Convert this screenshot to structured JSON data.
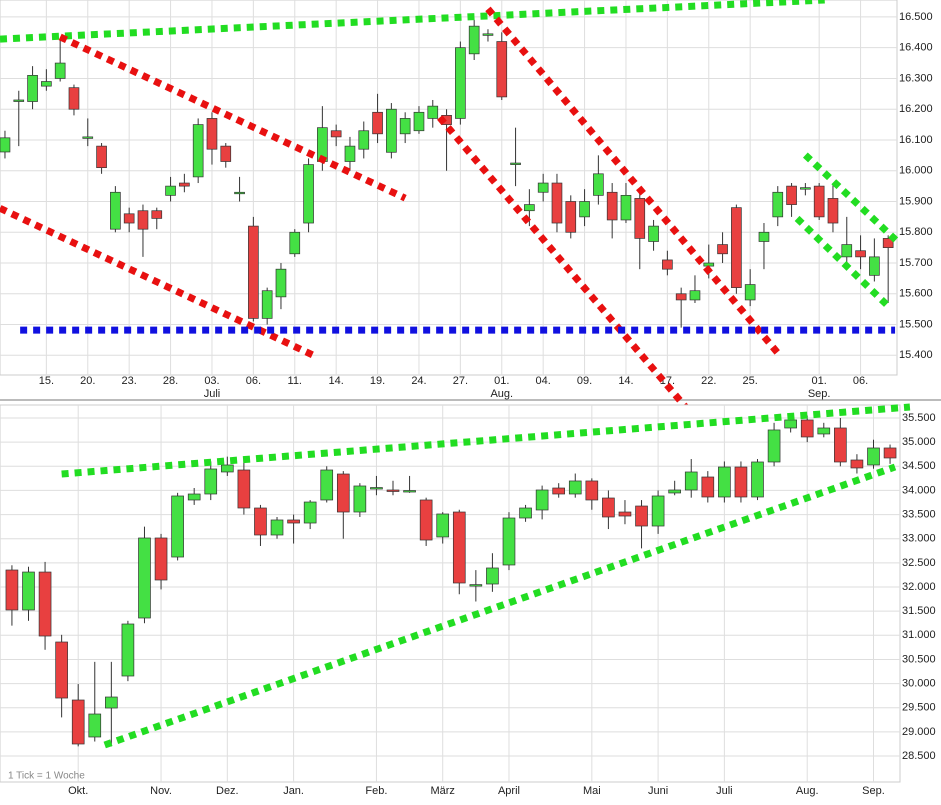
{
  "chart_data": [
    {
      "type": "candlestick",
      "up_color": "#44e044",
      "down_color": "#e84040",
      "xlim": [
        -0.36,
        64.64
      ],
      "ylim": [
        15336,
        16555
      ],
      "yticks": [
        {
          "value": 15400,
          "label": "15.400"
        },
        {
          "value": 15500,
          "label": "15.500"
        },
        {
          "value": 15600,
          "label": "15.600"
        },
        {
          "value": 15700,
          "label": "15.700"
        },
        {
          "value": 15800,
          "label": "15.800"
        },
        {
          "value": 15900,
          "label": "15.900"
        },
        {
          "value": 16000,
          "label": "16.000"
        },
        {
          "value": 16100,
          "label": "16.100"
        },
        {
          "value": 16200,
          "label": "16.200"
        },
        {
          "value": 16300,
          "label": "16.300"
        },
        {
          "value": 16400,
          "label": "16.400"
        },
        {
          "value": 16500,
          "label": "16.500"
        }
      ],
      "xticks": [
        {
          "value": 3,
          "label": "15."
        },
        {
          "value": 6,
          "label": "20."
        },
        {
          "value": 9,
          "label": "23."
        },
        {
          "value": 12,
          "label": "28."
        },
        {
          "value": 15,
          "label": "03."
        },
        {
          "value": 18,
          "label": "06."
        },
        {
          "value": 21,
          "label": "11."
        },
        {
          "value": 24,
          "label": "14."
        },
        {
          "value": 27,
          "label": "19."
        },
        {
          "value": 30,
          "label": "24."
        },
        {
          "value": 33,
          "label": "27."
        },
        {
          "value": 36,
          "label": "01."
        },
        {
          "value": 39,
          "label": "04."
        },
        {
          "value": 42,
          "label": "09."
        },
        {
          "value": 45,
          "label": "14."
        },
        {
          "value": 48,
          "label": "17."
        },
        {
          "value": 51,
          "label": "22."
        },
        {
          "value": 54,
          "label": "25."
        },
        {
          "value": 59,
          "label": "01."
        },
        {
          "value": 62,
          "label": "06."
        }
      ],
      "xticks_secondary": [
        {
          "value": 15,
          "label": "Juli"
        },
        {
          "value": 36,
          "label": "Aug."
        },
        {
          "value": 59,
          "label": "Sep."
        }
      ],
      "open": [
        16061,
        16225,
        16225,
        16275,
        16300,
        16270,
        16110,
        16080,
        15810,
        15860,
        15870,
        15870,
        15920,
        15960,
        15980,
        16170,
        16080,
        15930,
        15820,
        15520,
        15590,
        15730,
        15830,
        16030,
        16130,
        16030,
        16070,
        16190,
        16060,
        16120,
        16130,
        16170,
        16180,
        16170,
        16380,
        16440,
        16420,
        16020,
        15870,
        15930,
        15960,
        15900,
        15850,
        15920,
        15930,
        15840,
        15910,
        15770,
        15710,
        15600,
        15580,
        15690,
        15760,
        15880,
        15580,
        15770,
        15850,
        15950,
        15940,
        15950,
        15910,
        15720,
        15740,
        15660,
        15780
      ],
      "high": [
        16130,
        16260,
        16340,
        16330,
        16430,
        16280,
        16170,
        16090,
        15950,
        15880,
        15890,
        15880,
        15980,
        15990,
        16170,
        16190,
        16090,
        15980,
        15850,
        15620,
        15700,
        15810,
        16040,
        16210,
        16150,
        16110,
        16160,
        16250,
        16220,
        16190,
        16210,
        16230,
        16200,
        16420,
        16490,
        16460,
        16450,
        16140,
        15940,
        15990,
        15990,
        15920,
        15940,
        16050,
        15960,
        15960,
        15930,
        15840,
        15740,
        15620,
        15660,
        15760,
        15800,
        15890,
        15680,
        15830,
        15950,
        15960,
        15960,
        15960,
        15960,
        15850,
        15790,
        15780,
        15790
      ],
      "low": [
        16040,
        16080,
        16200,
        16260,
        16290,
        16180,
        16080,
        15990,
        15800,
        15800,
        15720,
        15810,
        15900,
        15930,
        15960,
        16020,
        16010,
        15900,
        15510,
        15500,
        15550,
        15720,
        15800,
        16000,
        16080,
        16000,
        16040,
        16090,
        16040,
        16090,
        16120,
        16140,
        16000,
        16150,
        16360,
        16420,
        16230,
        15950,
        15820,
        15900,
        15800,
        15780,
        15820,
        15890,
        15780,
        15830,
        15680,
        15740,
        15660,
        15490,
        15570,
        15650,
        15700,
        15600,
        15560,
        15680,
        15820,
        15850,
        15920,
        15840,
        15800,
        15700,
        15680,
        15640,
        15570
      ],
      "close": [
        16107,
        16230,
        16310,
        16290,
        16350,
        16200,
        16110,
        16010,
        15930,
        15830,
        15810,
        15845,
        15950,
        15950,
        16150,
        16070,
        16030,
        15930,
        15520,
        15610,
        15680,
        15800,
        16020,
        16140,
        16110,
        16080,
        16130,
        16120,
        16200,
        16170,
        16190,
        16210,
        16150,
        16400,
        16470,
        16445,
        16240,
        16025,
        15890,
        15960,
        15830,
        15800,
        15900,
        15990,
        15840,
        15920,
        15780,
        15820,
        15680,
        15580,
        15610,
        15700,
        15730,
        15620,
        15630,
        15800,
        15930,
        15890,
        15945,
        15850,
        15830,
        15760,
        15720,
        15720,
        15750
      ],
      "trendlines": [
        {
          "color": "#22dd22",
          "points": [
            [
              -0.36,
              16428
            ],
            [
              59.4,
              16555
            ]
          ]
        },
        {
          "color": "#e81010",
          "points": [
            [
              4.0,
              16435
            ],
            [
              29.0,
              15911
            ]
          ]
        },
        {
          "color": "#e81010",
          "points": [
            [
              -0.36,
              15878
            ],
            [
              22.5,
              15397
            ]
          ]
        },
        {
          "color": "#e81010",
          "points": [
            [
              31.5,
              16173
            ],
            [
              49.3,
              15233
            ]
          ]
        },
        {
          "color": "#e81010",
          "points": [
            [
              35.0,
              16526
            ],
            [
              56.2,
              15397
            ]
          ]
        },
        {
          "color": "#1010e0",
          "points": [
            [
              1.1,
              15482
            ],
            [
              64.5,
              15482
            ]
          ]
        },
        {
          "color": "#22dd22",
          "points": [
            [
              58.0,
              16051
            ],
            [
              64.6,
              15773
            ]
          ]
        },
        {
          "color": "#22dd22",
          "points": [
            [
              57.4,
              15845
            ],
            [
              64.0,
              15560
            ]
          ]
        }
      ]
    },
    {
      "type": "candlestick",
      "up_color": "#44e044",
      "down_color": "#e84040",
      "xlim": [
        -0.72,
        53.6
      ],
      "ylim": [
        27962,
        35769
      ],
      "annotation": "1 Tick = 1 Woche",
      "yticks": [
        {
          "value": 28500,
          "label": "28.500"
        },
        {
          "value": 29000,
          "label": "29.000"
        },
        {
          "value": 29500,
          "label": "29.500"
        },
        {
          "value": 30000,
          "label": "30.000"
        },
        {
          "value": 30500,
          "label": "30.500"
        },
        {
          "value": 31000,
          "label": "31.000"
        },
        {
          "value": 31500,
          "label": "31.500"
        },
        {
          "value": 32000,
          "label": "32.000"
        },
        {
          "value": 32500,
          "label": "32.500"
        },
        {
          "value": 33000,
          "label": "33.000"
        },
        {
          "value": 33500,
          "label": "33.500"
        },
        {
          "value": 34000,
          "label": "34.000"
        },
        {
          "value": 34500,
          "label": "34.500"
        },
        {
          "value": 35000,
          "label": "35.000"
        },
        {
          "value": 35500,
          "label": "35.500"
        }
      ],
      "xticks": [
        {
          "value": 4,
          "label": "Okt."
        },
        {
          "value": 9,
          "label": "Nov."
        },
        {
          "value": 13,
          "label": "Dez."
        },
        {
          "value": 17,
          "label": "Jan."
        },
        {
          "value": 22,
          "label": "Feb."
        },
        {
          "value": 26,
          "label": "März"
        },
        {
          "value": 30,
          "label": "April"
        },
        {
          "value": 35,
          "label": "Mai"
        },
        {
          "value": 39,
          "label": "Juni"
        },
        {
          "value": 43,
          "label": "Juli"
        },
        {
          "value": 48,
          "label": "Aug."
        },
        {
          "value": 52,
          "label": "Sep."
        }
      ],
      "open": [
        32352,
        31524,
        32310,
        30861,
        29660,
        28894,
        29494,
        30157,
        31358,
        33015,
        32621,
        33802,
        33926,
        34382,
        34423,
        33636,
        33077,
        33388,
        33325,
        33802,
        34340,
        33553,
        34050,
        34009,
        33988,
        33802,
        33036,
        33553,
        32041,
        32062,
        32456,
        33429,
        33595,
        34050,
        33926,
        34196,
        33843,
        33553,
        33677,
        33263,
        33947,
        34009,
        34278,
        33864,
        34485,
        33864,
        34589,
        35293,
        35459,
        35169,
        35293,
        34630,
        34527,
        34879
      ],
      "high": [
        32450,
        32420,
        32520,
        31010,
        29990,
        30450,
        30450,
        31300,
        33250,
        33100,
        33950,
        34050,
        34600,
        34700,
        34650,
        33700,
        33450,
        33500,
        33800,
        34500,
        34400,
        34150,
        34300,
        34200,
        34300,
        33850,
        33550,
        33600,
        32350,
        32700,
        33550,
        33700,
        34100,
        34150,
        34350,
        34250,
        34000,
        33800,
        33800,
        34000,
        34200,
        34650,
        34400,
        34600,
        34600,
        34650,
        35400,
        35600,
        35550,
        35400,
        35500,
        34750,
        35050,
        34950
      ],
      "low": [
        31200,
        31300,
        30700,
        29300,
        28700,
        28800,
        28700,
        30050,
        31250,
        31950,
        32550,
        33700,
        33800,
        34300,
        33500,
        32850,
        33000,
        32900,
        33200,
        33750,
        33000,
        33450,
        33900,
        33900,
        33950,
        32850,
        32900,
        31850,
        31700,
        31900,
        32350,
        33350,
        33400,
        33850,
        33850,
        33600,
        33200,
        33300,
        32800,
        33100,
        33900,
        33850,
        33750,
        33750,
        33750,
        33800,
        34500,
        35200,
        35000,
        35100,
        34500,
        34350,
        34450,
        34550
      ],
      "close": [
        31524,
        32310,
        30985,
        29701,
        28749,
        29370,
        29722,
        31234,
        33015,
        32145,
        33885,
        33926,
        34444,
        34527,
        33636,
        33077,
        33388,
        33325,
        33760,
        34423,
        33553,
        34092,
        34060,
        34000,
        33998,
        32973,
        33512,
        32083,
        32050,
        32394,
        33429,
        33636,
        34009,
        33926,
        34196,
        33802,
        33450,
        33470,
        33263,
        33885,
        34009,
        34382,
        33864,
        34485,
        33864,
        34589,
        35252,
        35459,
        35107,
        35293,
        34589,
        34465,
        34879,
        34672
      ],
      "trendlines": [
        {
          "color": "#22dd22",
          "points": [
            [
              3.0,
              34340
            ],
            [
              54.2,
              35728
            ]
          ]
        },
        {
          "color": "#22dd22",
          "points": [
            [
              5.6,
              28728
            ],
            [
              53.3,
              34485
            ]
          ]
        }
      ]
    }
  ]
}
